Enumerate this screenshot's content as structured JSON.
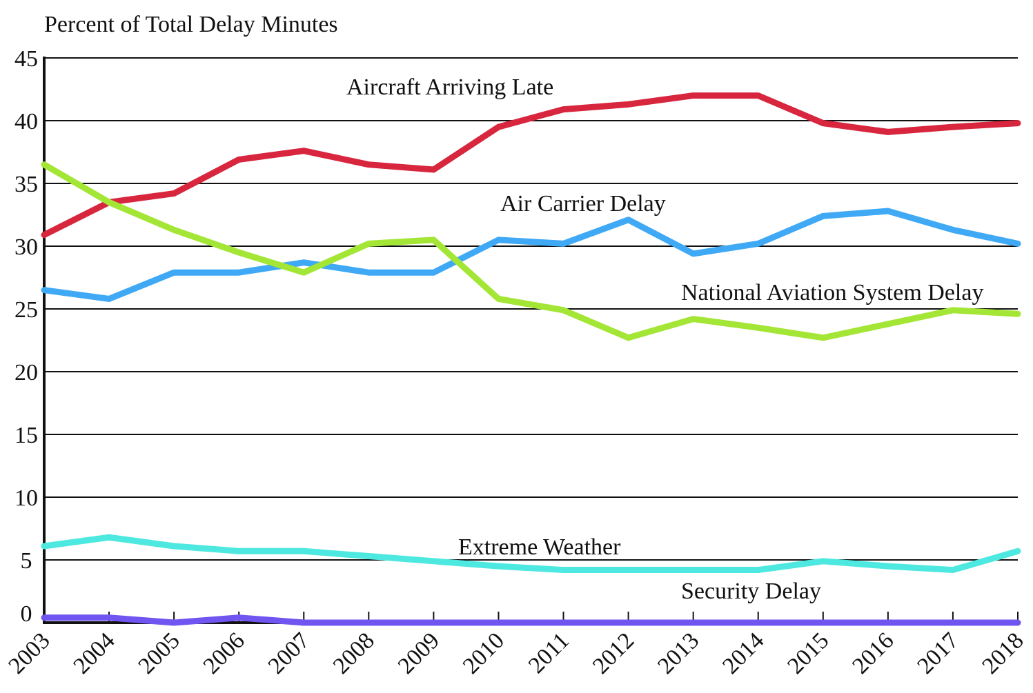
{
  "chart_data": {
    "type": "line",
    "title": "",
    "ylabel": "Percent of Total Delay Minutes",
    "xlabel": "",
    "ylim": [
      0,
      45
    ],
    "yticks": [
      "0",
      "5",
      "10",
      "15",
      "20",
      "25",
      "30",
      "35",
      "40",
      "45"
    ],
    "grid": true,
    "legend": "inline labels",
    "x": [
      "2003",
      "2004",
      "2005",
      "2006",
      "2007",
      "2008",
      "2009",
      "2010",
      "2011",
      "2012",
      "2013",
      "2014",
      "2015",
      "2016",
      "2017",
      "2018"
    ],
    "series": [
      {
        "name": "Aircraft Arriving Late",
        "color": "#d7263d",
        "values": [
          30.9,
          33.5,
          34.2,
          36.9,
          37.6,
          36.5,
          36.1,
          39.5,
          40.9,
          41.3,
          42.0,
          42.0,
          39.8,
          39.1,
          39.5,
          39.8
        ]
      },
      {
        "name": "Air Carrier Delay",
        "color": "#3fa9f5",
        "values": [
          26.5,
          25.8,
          27.9,
          27.9,
          28.7,
          27.9,
          27.9,
          30.5,
          30.2,
          32.1,
          29.4,
          30.2,
          32.4,
          32.8,
          31.3,
          30.2
        ]
      },
      {
        "name": "National Aviation System Delay",
        "color": "#a3e635",
        "values": [
          36.5,
          33.5,
          31.3,
          29.5,
          27.9,
          30.2,
          30.5,
          25.8,
          24.9,
          22.7,
          24.2,
          23.5,
          22.7,
          23.8,
          24.9,
          24.6
        ]
      },
      {
        "name": "Extreme Weather",
        "color": "#4de8df",
        "values": [
          6.1,
          6.8,
          6.1,
          5.7,
          5.7,
          5.3,
          4.9,
          4.5,
          4.2,
          4.2,
          4.2,
          4.2,
          4.9,
          4.5,
          4.2,
          5.7
        ]
      },
      {
        "name": "Security Delay",
        "color": "#7155f0",
        "values": [
          0.4,
          0.4,
          0.0,
          0.4,
          0.0,
          0.0,
          0.0,
          0.0,
          0.0,
          0.0,
          0.0,
          0.0,
          0.0,
          0.0,
          0.0,
          0.0
        ]
      }
    ]
  }
}
